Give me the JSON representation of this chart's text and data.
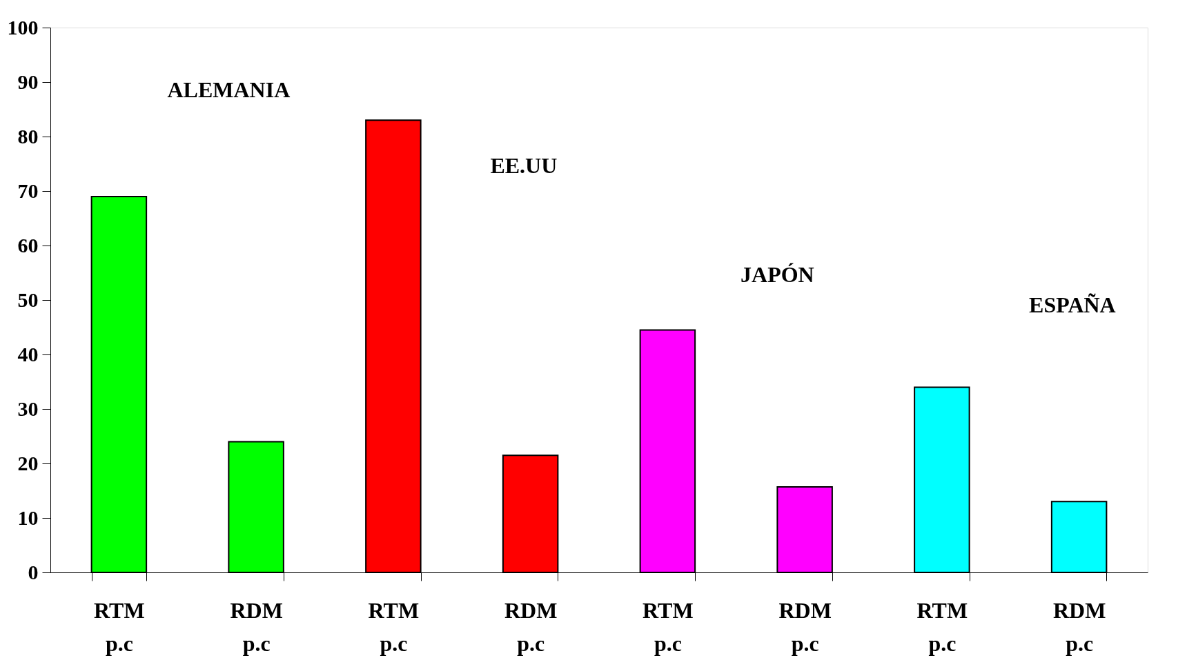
{
  "chart_data": {
    "type": "bar",
    "categories": [
      "RTM\np.c",
      "RDM\np.c",
      "RTM\np.c",
      "RDM\np.c",
      "RTM\np.c",
      "RDM\np.c",
      "RTM\np.c",
      "RDM\np.c"
    ],
    "values": [
      69,
      24,
      83,
      21.5,
      44.5,
      15.7,
      34,
      13
    ],
    "colors": [
      "#00ff00",
      "#00ff00",
      "#ff0000",
      "#ff0000",
      "#ff00ff",
      "#ff00ff",
      "#00ffff",
      "#00ffff"
    ],
    "ylim": [
      0,
      100
    ],
    "yticks": [
      0,
      10,
      20,
      30,
      40,
      50,
      60,
      70,
      80,
      90,
      100
    ],
    "annotations": [
      "ALEMANIA",
      "EE.UU",
      "JAPÓN",
      "ESPAÑA"
    ],
    "grid": false
  }
}
